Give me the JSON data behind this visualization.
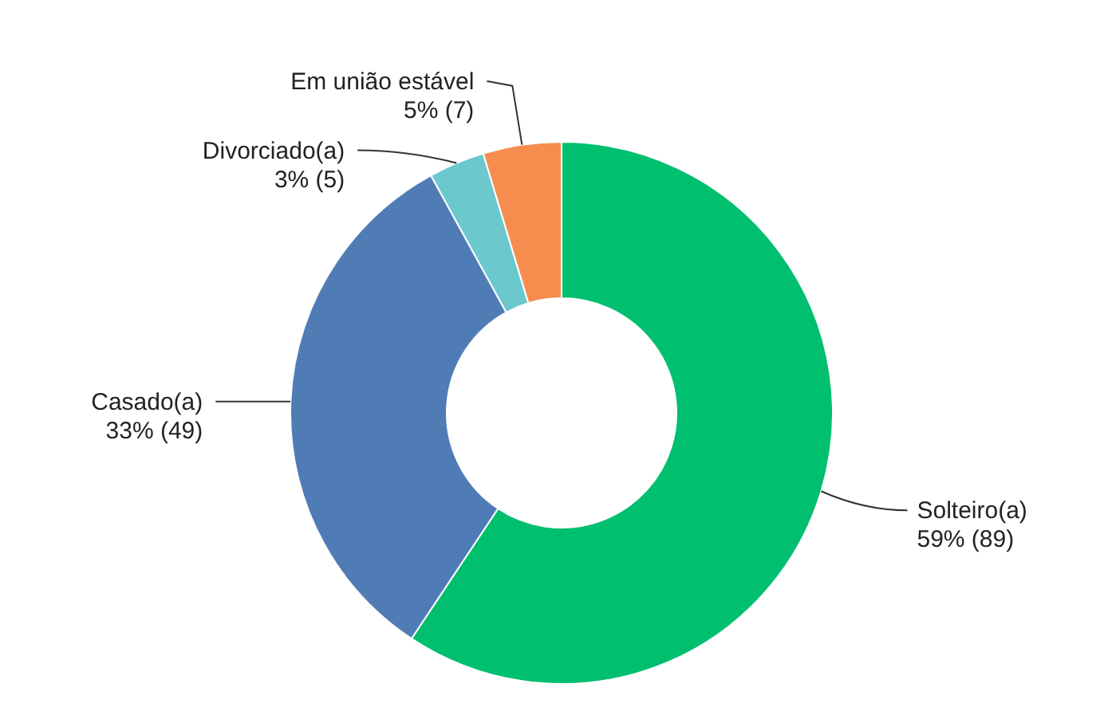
{
  "chart_data": {
    "type": "donut",
    "categories": [
      "Solteiro(a)",
      "Casado(a)",
      "Divorciado(a)",
      "Em união estável"
    ],
    "values": [
      89,
      49,
      5,
      7
    ],
    "colors": [
      "#00bf6f",
      "#507cb6",
      "#6bc8cd",
      "#f68d4f"
    ],
    "value_labels": [
      "59% (89)",
      "33% (49)",
      "3% (5)",
      "5% (7)"
    ],
    "legend": false
  }
}
